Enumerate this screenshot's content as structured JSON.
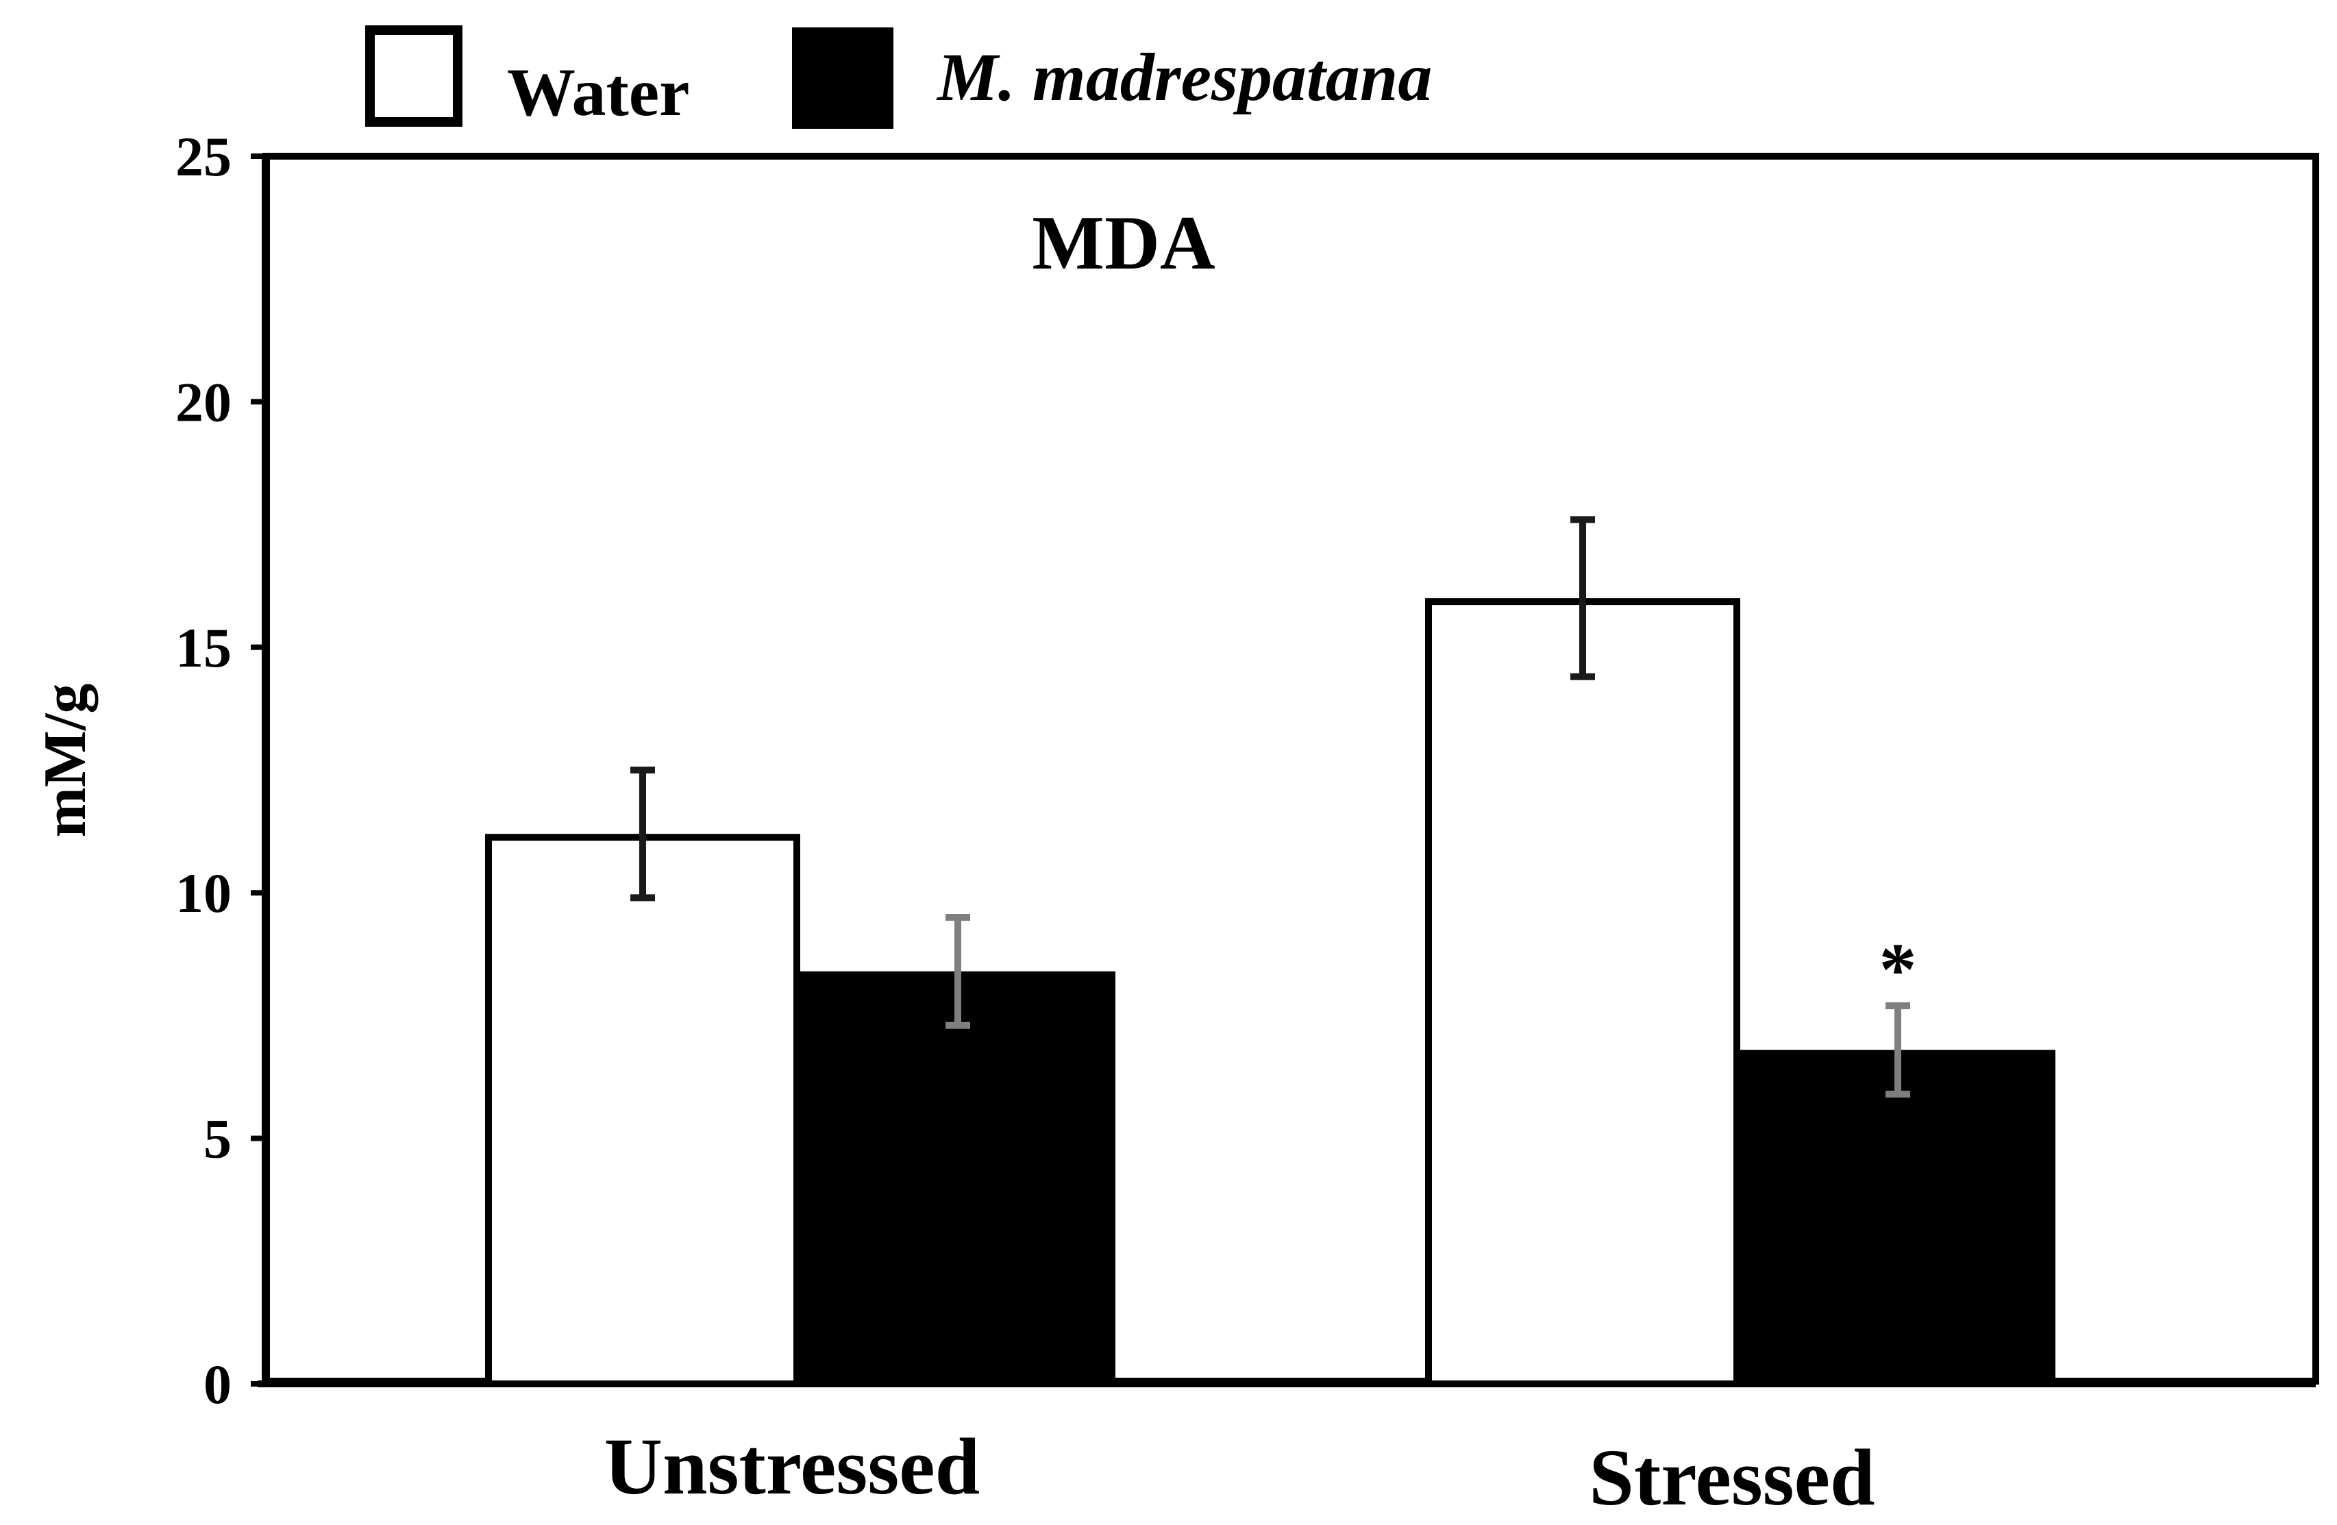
{
  "chart_data": {
    "type": "bar",
    "title": "MDA",
    "xlabel": "",
    "ylabel": "mM/g",
    "ylim": [
      0,
      25
    ],
    "yticks": [
      0,
      5,
      10,
      15,
      20,
      25
    ],
    "grid": false,
    "legend_position": "top-left",
    "categories": [
      "Unstressed",
      "Stressed"
    ],
    "series": [
      {
        "name": "Water",
        "fill": "#ffffff",
        "stroke": "#000000",
        "error_color": "#1a1a1a",
        "italic": false,
        "values": [
          11.2,
          16.0
        ],
        "errors": [
          1.3,
          1.6
        ]
      },
      {
        "name": "M. madrespatana",
        "fill": "#000000",
        "stroke": "#000000",
        "error_color": "#7f7f7f",
        "italic": true,
        "values": [
          8.4,
          6.8
        ],
        "errors": [
          1.1,
          0.9
        ]
      }
    ],
    "annotations": [
      {
        "text": "*",
        "series": 1,
        "category": 1
      }
    ]
  },
  "colors": {
    "axis": "#000000",
    "frame": "#000000",
    "background": "#ffffff"
  }
}
